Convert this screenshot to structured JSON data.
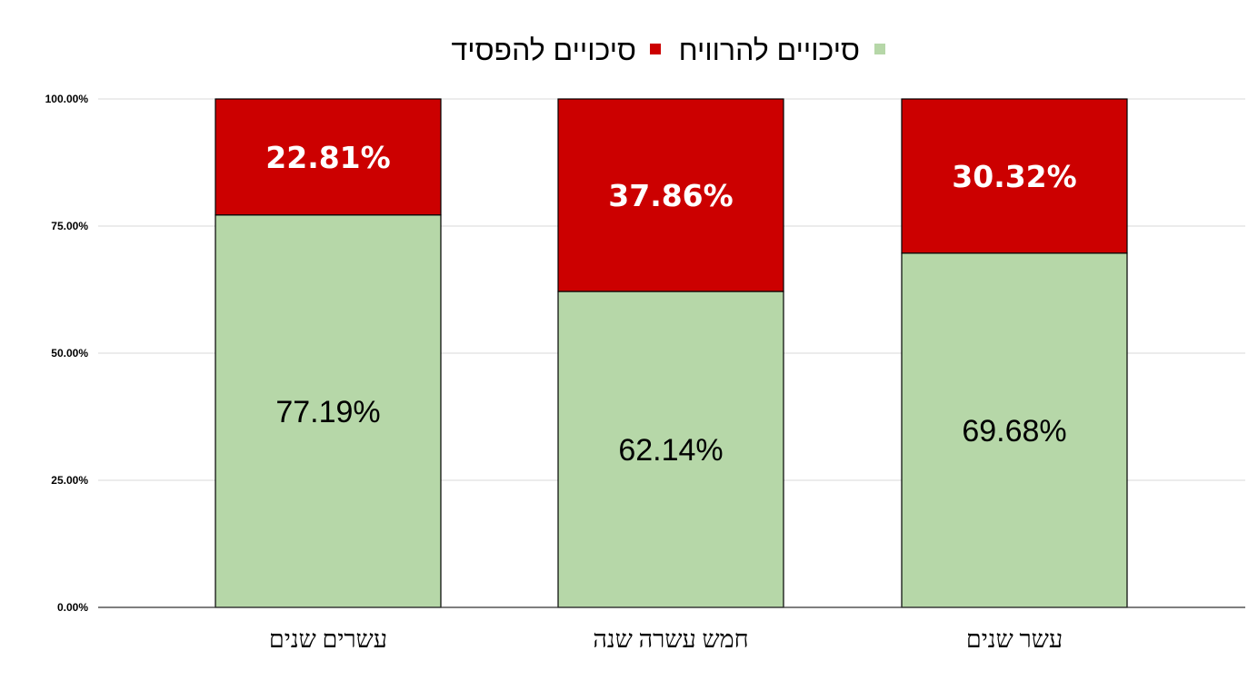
{
  "chart_data": {
    "type": "bar",
    "stacked": true,
    "categories": [
      "עשרים שנים",
      "חמש עשרה שנה",
      "עשר שנים"
    ],
    "series": [
      {
        "name": "סיכויים להרוויח",
        "color": "#b6d7a8",
        "values": [
          77.19,
          62.14,
          69.68
        ],
        "labels": [
          "77.19%",
          "62.14%",
          "69.68%"
        ]
      },
      {
        "name": "סיכויים להפסיד",
        "color": "#cc0000",
        "values": [
          22.81,
          37.86,
          30.32
        ],
        "labels": [
          "22.81%",
          "37.86%",
          "30.32%"
        ]
      }
    ],
    "ylim": [
      0,
      100
    ],
    "yticks": [
      0,
      25,
      50,
      75,
      100
    ],
    "ytick_labels": [
      "0.00%",
      "25.00%",
      "50.00%",
      "75.00%",
      "100.00%"
    ],
    "grid": true,
    "legend_position": "top"
  }
}
